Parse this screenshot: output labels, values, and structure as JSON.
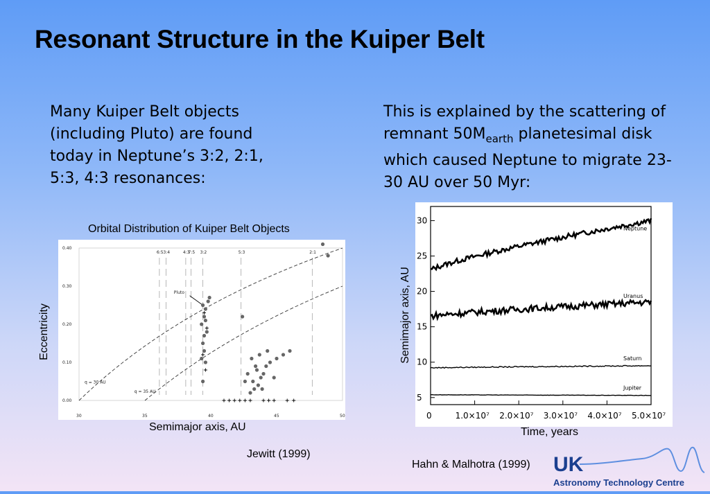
{
  "slide": {
    "title": "Resonant Structure in the Kuiper Belt",
    "left_text": "Many Kuiper Belt objects (including Pluto) are found today in Neptune’s 3:2, 2:1, 5:3, 4:3 resonances:",
    "right_text_pre": "This is explained by the scattering of remnant 50M",
    "right_text_sub": "earth",
    "right_text_post": " planetesimal disk which caused Neptune to migrate 23-30 AU over 50 Myr:",
    "citation_left": "Jewitt (1999)",
    "citation_right": "Hahn & Malhotra (1999)"
  },
  "logo": {
    "top": "UK",
    "bottom": "Astronomy Technology Centre",
    "color": "#1b3f8f"
  },
  "chart_data": [
    {
      "type": "scatter",
      "title": "Orbital Distribution of Kuiper Belt Objects",
      "xlabel": "Semimajor axis, AU",
      "ylabel": "Eccentricity",
      "xlim": [
        30,
        50
      ],
      "ylim": [
        0,
        0.4
      ],
      "x_ticks": [
        "30",
        "35",
        "40",
        "45",
        "50"
      ],
      "y_ticks": [
        "0.00",
        "0.10",
        "0.20",
        "0.30",
        "0.40"
      ],
      "resonance_labels": [
        "6:5",
        "3:4",
        "4:3",
        "7:5",
        "3:2",
        "5:3",
        "2:1"
      ],
      "annotations": [
        "Pluto",
        "q = 30 AU",
        "q = 35 AU"
      ],
      "points": [
        [
          39.4,
          0.25
        ],
        [
          39.6,
          0.24
        ],
        [
          39.5,
          0.22
        ],
        [
          39.3,
          0.2
        ],
        [
          39.7,
          0.18
        ],
        [
          39.5,
          0.17
        ],
        [
          39.4,
          0.15
        ],
        [
          39.5,
          0.13
        ],
        [
          39.3,
          0.11
        ],
        [
          39.6,
          0.1
        ],
        [
          39.8,
          0.26
        ],
        [
          39.9,
          0.27
        ],
        [
          39.4,
          0.05
        ],
        [
          39.6,
          0.21
        ],
        [
          43.0,
          0.02
        ],
        [
          43.3,
          0.03
        ],
        [
          43.6,
          0.04
        ],
        [
          43.2,
          0.05
        ],
        [
          43.8,
          0.06
        ],
        [
          44.0,
          0.07
        ],
        [
          43.5,
          0.08
        ],
        [
          44.2,
          0.09
        ],
        [
          44.5,
          0.1
        ],
        [
          43.1,
          0.11
        ],
        [
          43.7,
          0.12
        ],
        [
          44.3,
          0.13
        ],
        [
          45.0,
          0.11
        ],
        [
          45.5,
          0.12
        ],
        [
          46.0,
          0.13
        ],
        [
          43.4,
          0.09
        ],
        [
          42.8,
          0.07
        ],
        [
          42.6,
          0.05
        ],
        [
          44.8,
          0.06
        ],
        [
          43.9,
          0.03
        ],
        [
          42.4,
          0.22
        ],
        [
          48.5,
          0.41
        ],
        [
          48.9,
          0.38
        ]
      ],
      "plus_points": [
        [
          41.0,
          0.0
        ],
        [
          41.4,
          0.0
        ],
        [
          41.8,
          0.0
        ],
        [
          42.2,
          0.0
        ],
        [
          42.6,
          0.0
        ],
        [
          43.0,
          0.0
        ],
        [
          44.0,
          0.0
        ],
        [
          44.4,
          0.0
        ],
        [
          44.8,
          0.0
        ],
        [
          45.8,
          0.0
        ],
        [
          46.3,
          0.0
        ],
        [
          39.6,
          0.08
        ],
        [
          39.4,
          0.12
        ],
        [
          39.7,
          0.19
        ],
        [
          39.5,
          0.23
        ]
      ]
    },
    {
      "type": "line",
      "xlabel": "Time, years",
      "ylabel": "Semimajor axis, AU",
      "xlim": [
        0,
        50000000
      ],
      "ylim": [
        4,
        32
      ],
      "x_ticks": [
        "0",
        "1.0×10⁷",
        "2.0×10⁷",
        "3.0×10⁷",
        "4.0×10⁷",
        "5.0×10⁷"
      ],
      "y_ticks": [
        "5",
        "10",
        "15",
        "20",
        "25",
        "30"
      ],
      "series": [
        {
          "name": "Neptune",
          "start": 23,
          "end": 30
        },
        {
          "name": "Uranus",
          "start": 16.5,
          "end": 18.5
        },
        {
          "name": "Saturn",
          "start": 9.2,
          "end": 9.5
        },
        {
          "name": "Jupiter",
          "start": 5.4,
          "end": 5.3
        }
      ]
    }
  ]
}
